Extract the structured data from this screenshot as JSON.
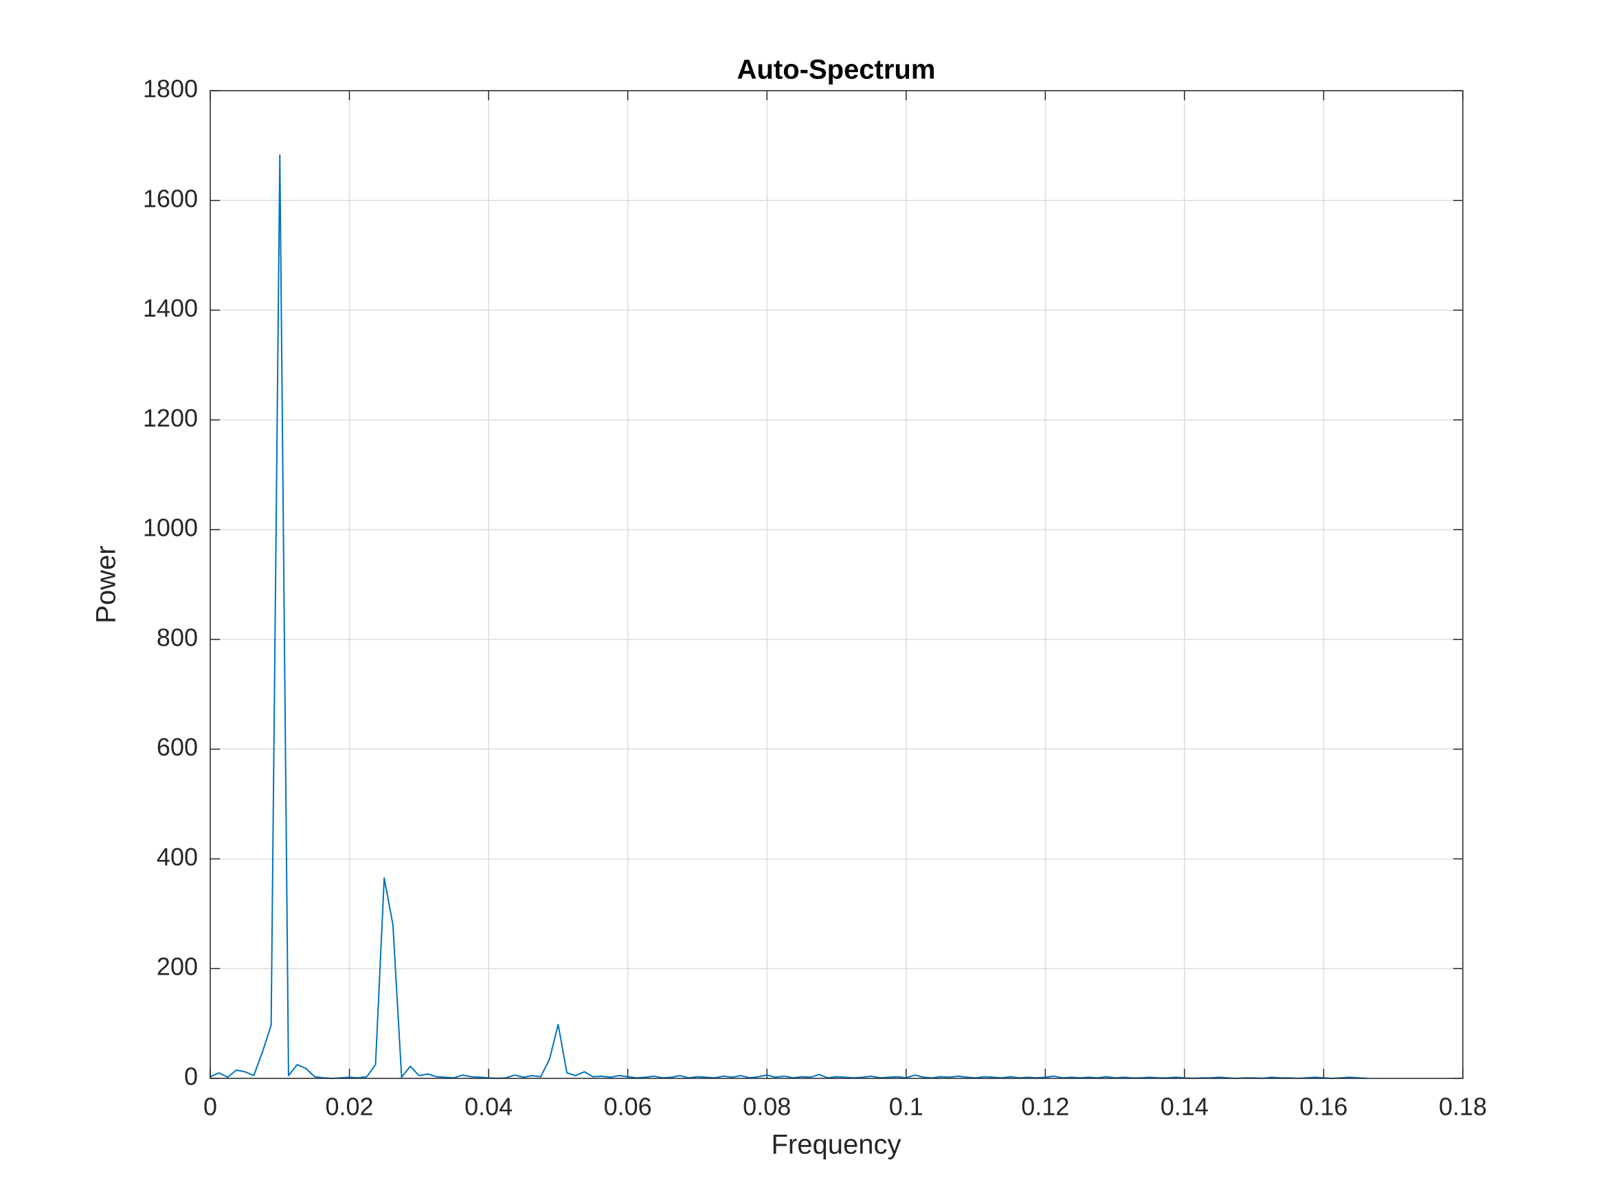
{
  "chart_data": {
    "type": "line",
    "title": "Auto-Spectrum",
    "x_label": "Frequency",
    "y_label": "Power",
    "x": [
      0,
      0.00125,
      0.0025,
      0.00375,
      0.005,
      0.00625,
      0.0075,
      0.00875,
      0.01,
      0.01125,
      0.0125,
      0.01375,
      0.015,
      0.01625,
      0.0175,
      0.01875,
      0.02,
      0.02125,
      0.0225,
      0.02375,
      0.025,
      0.02625,
      0.0275,
      0.02875,
      0.03,
      0.03125,
      0.0325,
      0.03375,
      0.035,
      0.03625,
      0.0375,
      0.03875,
      0.04,
      0.04125,
      0.0425,
      0.04375,
      0.045,
      0.04625,
      0.0475,
      0.04875,
      0.05,
      0.05125,
      0.0525,
      0.05375,
      0.055,
      0.05625,
      0.0575,
      0.05875,
      0.06,
      0.06125,
      0.0625,
      0.06375,
      0.065,
      0.06625,
      0.0675,
      0.06875,
      0.07,
      0.07125,
      0.0725,
      0.07375,
      0.075,
      0.07625,
      0.0775,
      0.07875,
      0.08,
      0.08125,
      0.0825,
      0.08375,
      0.085,
      0.08625,
      0.0875,
      0.08875,
      0.09,
      0.09125,
      0.0925,
      0.09375,
      0.095,
      0.09625,
      0.0975,
      0.09875,
      0.1,
      0.10125,
      0.1025,
      0.10375,
      0.105,
      0.10625,
      0.1075,
      0.10875,
      0.11,
      0.11125,
      0.1125,
      0.11375,
      0.115,
      0.11625,
      0.1175,
      0.11875,
      0.12,
      0.12125,
      0.1225,
      0.12375,
      0.125,
      0.12625,
      0.1275,
      0.12875,
      0.13,
      0.13125,
      0.1325,
      0.13375,
      0.135,
      0.13625,
      0.1375,
      0.13875,
      0.14,
      0.14125,
      0.1425,
      0.14375,
      0.145,
      0.14625,
      0.1475,
      0.14875,
      0.15,
      0.15125,
      0.1525,
      0.15375,
      0.155,
      0.15625,
      0.1575,
      0.15875,
      0.16,
      0.16125,
      0.1625,
      0.16375,
      0.165,
      0.16625
    ],
    "values": [
      3,
      10,
      2,
      15,
      12,
      5,
      48,
      97,
      1683,
      5,
      25,
      18,
      3,
      1,
      0,
      1,
      2,
      1,
      3,
      25,
      365,
      280,
      2,
      22,
      5,
      8,
      3,
      2,
      1,
      6,
      3,
      2,
      1,
      0,
      1,
      6,
      2,
      5,
      3,
      35,
      98,
      10,
      5,
      12,
      3,
      4,
      2,
      5,
      3,
      1,
      2,
      4,
      1,
      2,
      5,
      1,
      3,
      2,
      1,
      4,
      2,
      5,
      1,
      3,
      6,
      2,
      4,
      1,
      3,
      2,
      7,
      1,
      3,
      2,
      1,
      2,
      4,
      1,
      2,
      3,
      1,
      6,
      2,
      1,
      3,
      2,
      4,
      2,
      1,
      3,
      2,
      1,
      3,
      1,
      2,
      1,
      2,
      4,
      1,
      2,
      1,
      2,
      1,
      3,
      1,
      2,
      1,
      1,
      2,
      1,
      1,
      2,
      1,
      0,
      1,
      1,
      2,
      1,
      0,
      1,
      1,
      0,
      2,
      1,
      1,
      0,
      1,
      2,
      1,
      0,
      1,
      2,
      1,
      0
    ],
    "color": "#0072bd",
    "xlim": [
      0,
      0.18
    ],
    "xticks": [
      0,
      0.02,
      0.04,
      0.06,
      0.08,
      0.1,
      0.12,
      0.14,
      0.16,
      0.18
    ],
    "ylim": [
      0,
      1800
    ],
    "yticks": [
      0,
      200,
      400,
      600,
      800,
      1000,
      1200,
      1400,
      1600,
      1800
    ],
    "grid": true
  }
}
